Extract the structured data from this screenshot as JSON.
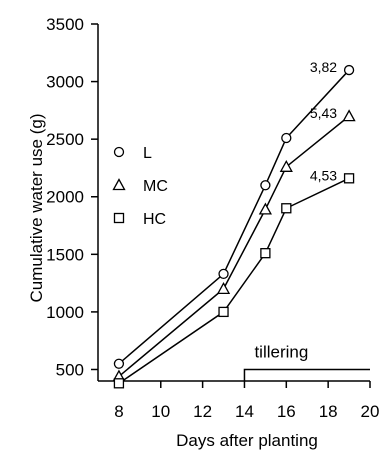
{
  "chart_data": {
    "type": "line",
    "xlabel": "Days after planting",
    "ylabel": "Cumulative water use (g)",
    "xlim": [
      7,
      20
    ],
    "ylim": [
      400,
      3500
    ],
    "x_ticks": [
      8,
      10,
      12,
      14,
      16,
      18,
      20
    ],
    "y_ticks": [
      500,
      1000,
      1500,
      2000,
      2500,
      3000,
      3500
    ],
    "x_tick_labels": [
      "8",
      "10",
      "12",
      "14",
      "16",
      "18",
      "20"
    ],
    "y_tick_labels": [
      "500",
      "1000",
      "1500",
      "2000",
      "2500",
      "3000",
      "3500"
    ],
    "grid": false,
    "legend_placement": "left",
    "series": [
      {
        "name": "L",
        "marker": "circle",
        "x": [
          8,
          13,
          15,
          16,
          19
        ],
        "y": [
          550,
          1330,
          2100,
          2510,
          3100
        ],
        "end_label": "3,82"
      },
      {
        "name": "MC",
        "marker": "triangle",
        "x": [
          8,
          13,
          15,
          16,
          19
        ],
        "y": [
          440,
          1200,
          1890,
          2260,
          2700
        ],
        "end_label": "5,43"
      },
      {
        "name": "HC",
        "marker": "square",
        "x": [
          8,
          13,
          15,
          16,
          19
        ],
        "y": [
          380,
          1000,
          1510,
          1900,
          2160
        ],
        "end_label": "4,53"
      }
    ],
    "annotations": [
      {
        "text": "tillering",
        "x_start": 14,
        "x_end": 20,
        "y": 500
      }
    ]
  }
}
